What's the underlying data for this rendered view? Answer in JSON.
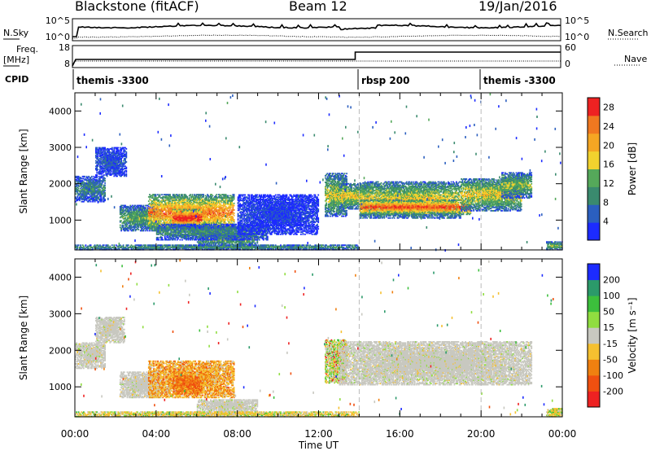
{
  "header": {
    "radar": "Blackstone (fitACF)",
    "beam": "Beam 12",
    "date": "19/Jan/2016"
  },
  "summary_panel": {
    "left_top_label": "N.Sky",
    "left_bottom_label": "Freq.\n[MHz]",
    "cpid_label": "CPID",
    "right_top_label": "N.Search",
    "right_bottom_label": "Nave",
    "nsky_ticks": [
      "10^5",
      "10^0"
    ],
    "freq_ticks": [
      "18",
      "8"
    ],
    "nave_ticks": [
      "60",
      "0"
    ],
    "cpid_segments": [
      {
        "label": "themis -3300",
        "start_hour": 0,
        "end_hour": 14
      },
      {
        "label": "rbsp 200",
        "start_hour": 14,
        "end_hour": 20
      },
      {
        "label": "themis -3300",
        "start_hour": 20,
        "end_hour": 24
      }
    ]
  },
  "chart_data": [
    {
      "type": "heatmap",
      "title": "",
      "xlabel": "Time UT",
      "ylabel": "Slant Range [km]",
      "xlim": [
        0,
        24
      ],
      "ylim": [
        180,
        4500
      ],
      "x_ticks": [
        "00:00",
        "04:00",
        "08:00",
        "12:00",
        "16:00",
        "20:00",
        "00:00"
      ],
      "y_ticks": [
        1000,
        2000,
        3000,
        4000
      ],
      "colorbar": {
        "label": "Power [dB]",
        "ticks": [
          4,
          8,
          12,
          16,
          20,
          24,
          28
        ],
        "range": [
          0,
          30
        ],
        "colors": [
          "#1c2bff",
          "#2b5fbf",
          "#3a8a6e",
          "#55a85a",
          "#f2d22e",
          "#f5a623",
          "#f07820",
          "#ee2222"
        ]
      },
      "echo_bands": [
        {
          "t0": 0.0,
          "t1": 1.5,
          "r0": 1500,
          "r1": 2200,
          "intensity": 0.3
        },
        {
          "t0": 1.0,
          "t1": 2.5,
          "r0": 2200,
          "r1": 3000,
          "intensity": 0.15
        },
        {
          "t0": 2.2,
          "t1": 4.2,
          "r0": 700,
          "r1": 1400,
          "intensity": 0.4
        },
        {
          "t0": 3.6,
          "t1": 7.8,
          "r0": 700,
          "r1": 1700,
          "intensity": 0.75
        },
        {
          "t0": 4.8,
          "t1": 6.2,
          "r0": 800,
          "r1": 1300,
          "intensity": 0.95
        },
        {
          "t0": 6.0,
          "t1": 9.0,
          "r0": 300,
          "r1": 650,
          "intensity": 0.45
        },
        {
          "t0": 4.0,
          "t1": 9.5,
          "r0": 450,
          "r1": 900,
          "intensity": 0.3
        },
        {
          "t0": 0.0,
          "t1": 14.0,
          "r0": 180,
          "r1": 320,
          "intensity": 0.35
        },
        {
          "t0": 8.0,
          "t1": 12.0,
          "r0": 600,
          "r1": 1700,
          "intensity": 0.1
        },
        {
          "t0": 12.3,
          "t1": 13.4,
          "r0": 1100,
          "r1": 2300,
          "intensity": 0.5
        },
        {
          "t0": 13.0,
          "t1": 14.5,
          "r0": 1300,
          "r1": 2000,
          "intensity": 0.55
        },
        {
          "t0": 14.0,
          "t1": 19.0,
          "r0": 1050,
          "r1": 2050,
          "intensity": 0.55
        },
        {
          "t0": 14.0,
          "t1": 19.5,
          "r0": 1150,
          "r1": 1550,
          "intensity": 0.85
        },
        {
          "t0": 19.0,
          "t1": 22.0,
          "r0": 1250,
          "r1": 2150,
          "intensity": 0.55
        },
        {
          "t0": 21.0,
          "t1": 22.5,
          "r0": 1600,
          "r1": 2300,
          "intensity": 0.45
        },
        {
          "t0": 23.2,
          "t1": 24.0,
          "r0": 180,
          "r1": 400,
          "intensity": 0.45
        }
      ]
    },
    {
      "type": "heatmap",
      "title": "",
      "xlabel": "Time UT",
      "ylabel": "Slant Range [km]",
      "xlim": [
        0,
        24
      ],
      "ylim": [
        180,
        4500
      ],
      "x_ticks": [
        "00:00",
        "04:00",
        "08:00",
        "12:00",
        "16:00",
        "20:00",
        "00:00"
      ],
      "y_ticks": [
        1000,
        2000,
        3000,
        4000
      ],
      "colorbar": {
        "label": "Velocity [m s⁻¹]",
        "ticks": [
          200,
          100,
          50,
          15,
          -15,
          -50,
          -100,
          -200
        ],
        "colors": [
          "#1c2bff",
          "#2b9a6a",
          "#3cbf3c",
          "#90dd40",
          "#c8c8c0",
          "#f5c030",
          "#f08010",
          "#f05010",
          "#ee2222"
        ]
      },
      "echo_bands": [
        {
          "t0": 0.0,
          "t1": 1.5,
          "r0": 1500,
          "r1": 2200,
          "v": "ground"
        },
        {
          "t0": 1.0,
          "t1": 2.4,
          "r0": 2200,
          "r1": 2900,
          "v": "ground"
        },
        {
          "t0": 2.2,
          "t1": 4.2,
          "r0": 700,
          "r1": 1400,
          "v": "ground"
        },
        {
          "t0": 3.6,
          "t1": 7.8,
          "r0": 700,
          "r1": 1700,
          "v": "neg_mid"
        },
        {
          "t0": 4.8,
          "t1": 6.2,
          "r0": 800,
          "r1": 1300,
          "v": "neg_high"
        },
        {
          "t0": 6.0,
          "t1": 9.0,
          "r0": 300,
          "r1": 650,
          "v": "ground"
        },
        {
          "t0": 0.0,
          "t1": 14.0,
          "r0": 180,
          "r1": 320,
          "v": "neg_low"
        },
        {
          "t0": 12.3,
          "t1": 13.4,
          "r0": 1100,
          "r1": 2300,
          "v": "mixed"
        },
        {
          "t0": 13.0,
          "t1": 22.5,
          "r0": 1050,
          "r1": 2250,
          "v": "ground"
        },
        {
          "t0": 23.2,
          "t1": 24.0,
          "r0": 180,
          "r1": 400,
          "v": "neg_low"
        }
      ]
    }
  ]
}
